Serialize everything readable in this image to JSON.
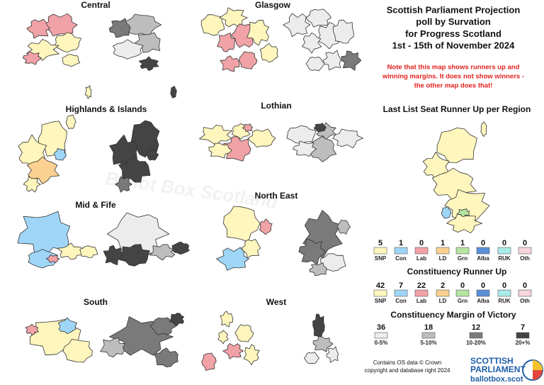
{
  "title_lines": [
    "Scottish Parliament Projection",
    "poll by Survation",
    "for Progress Scotland",
    "1st - 15th of November 2024"
  ],
  "note_lines": [
    "Note that this map shows runners up and",
    "winning margins. It does not show winners -",
    "the other map does that!"
  ],
  "regions": [
    "Central",
    "Glasgow",
    "Highlands & Islands",
    "Lothian",
    "Mid & Fife",
    "North East",
    "South",
    "West"
  ],
  "watermark": "Ballot Box Scotland",
  "parties": [
    {
      "name": "SNP",
      "color": "#fff6bd"
    },
    {
      "name": "Con",
      "color": "#9fd6f7"
    },
    {
      "name": "Lab",
      "color": "#f1a2a6"
    },
    {
      "name": "LD",
      "color": "#fad190"
    },
    {
      "name": "Grn",
      "color": "#b5e4a0"
    },
    {
      "name": "Alba",
      "color": "#5a8fd8"
    },
    {
      "name": "RUK",
      "color": "#a9ecea"
    },
    {
      "name": "Oth",
      "color": "#f8d4dc"
    }
  ],
  "list_runner_up": {
    "title": "Last List Seat Runner Up per Region",
    "counts": [
      5,
      1,
      0,
      1,
      1,
      0,
      0,
      0
    ]
  },
  "constituency_runner_up": {
    "title": "Constituency Runner Up",
    "counts": [
      42,
      7,
      22,
      2,
      0,
      0,
      0,
      0
    ]
  },
  "margin_of_victory": {
    "title": "Constituency Margin of Victory",
    "bands": [
      {
        "label": "0-5%",
        "count": 36,
        "color": "#ececec"
      },
      {
        "label": "5-10%",
        "count": 18,
        "color": "#bdbdbd"
      },
      {
        "label": "10-20%",
        "count": 12,
        "color": "#7a7a7a"
      },
      {
        "label": "20+%",
        "count": 7,
        "color": "#444444"
      }
    ]
  },
  "credit_lines": [
    "Contains OS data © Crown",
    "copyright and database right 2024"
  ],
  "logo": {
    "line1": "SCOTTISH",
    "line2": "PARLIAMENT",
    "site": "ballotbox.scot"
  }
}
